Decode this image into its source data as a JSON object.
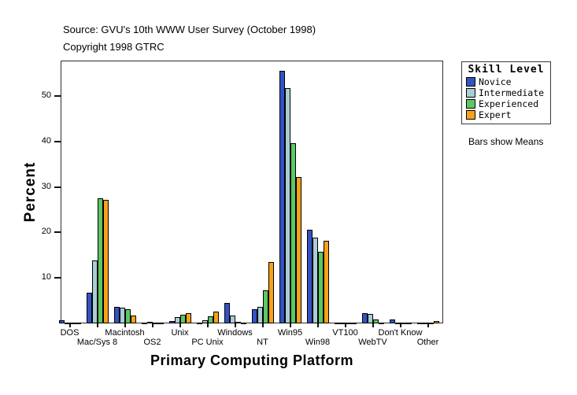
{
  "header": {
    "source": "Source: GVU's 10th WWW User Survey (October 1998)",
    "copyright": "Copyright 1998 GTRC"
  },
  "legend": {
    "title": "Skill Level",
    "note": "Bars show Means"
  },
  "chart_data": {
    "type": "bar",
    "title": "Source: GVU's 10th WWW User Survey (October 1998)",
    "subtitle": "Copyright 1998 GTRC",
    "xlabel": "Primary Computing Platform",
    "ylabel": "Percent",
    "ylim": [
      0,
      57.8
    ],
    "yticks": [
      10,
      20,
      30,
      40,
      50
    ],
    "grid": false,
    "legend_position": "right",
    "legend_title": "Skill Level",
    "annotation": "Bars show Means",
    "categories": [
      "DOS",
      "Mac/Sys 8",
      "Macintosh",
      "OS2",
      "Unix",
      "PC Unix",
      "Windows",
      "NT",
      "Win95",
      "Win98",
      "VT100",
      "WebTV",
      "Don't Know",
      "Other"
    ],
    "series": [
      {
        "name": "Novice",
        "color": "#3353c4",
        "values": [
          0.7,
          6.7,
          3.6,
          0.1,
          0.5,
          0.2,
          4.5,
          3.1,
          55.6,
          20.6,
          0.1,
          2.2,
          0.9,
          0.1
        ]
      },
      {
        "name": "Intermediate",
        "color": "#a9cdd3",
        "values": [
          0.2,
          13.9,
          3.4,
          0.4,
          1.4,
          0.7,
          1.7,
          3.7,
          51.7,
          18.8,
          0.1,
          2.1,
          0.2,
          0.1
        ]
      },
      {
        "name": "Experienced",
        "color": "#5dc763",
        "values": [
          0.1,
          27.6,
          3.2,
          0.2,
          1.9,
          1.5,
          0.4,
          7.2,
          39.7,
          15.7,
          0.1,
          0.8,
          0.1,
          0.2
        ]
      },
      {
        "name": "Expert",
        "color": "#f9a11b",
        "values": [
          0.1,
          27.2,
          1.7,
          0.1,
          2.2,
          2.6,
          0.2,
          13.5,
          32.2,
          18.1,
          0.1,
          0.1,
          0.1,
          0.6
        ]
      }
    ]
  }
}
